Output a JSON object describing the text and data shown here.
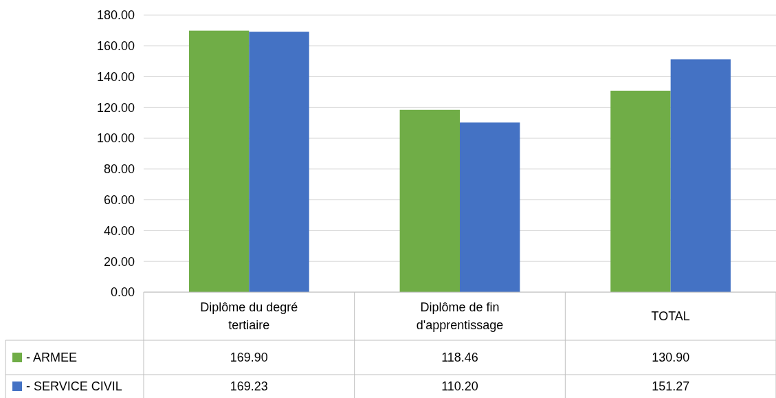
{
  "chart_data": {
    "type": "bar",
    "categories": [
      "Diplôme du degré tertiaire",
      "Diplôme de fin d'apprentissage",
      "TOTAL"
    ],
    "series": [
      {
        "name": "- ARMEE",
        "color": "#70ad47",
        "values": [
          169.9,
          118.46,
          130.9
        ],
        "value_labels": [
          "169.90",
          "118.46",
          "130.90"
        ]
      },
      {
        "name": "- SERVICE CIVIL",
        "color": "#4472c4",
        "values": [
          169.23,
          110.2,
          151.27
        ],
        "value_labels": [
          "169.23",
          "110.20",
          "151.27"
        ]
      }
    ],
    "ylim": [
      0,
      180
    ],
    "yticks": [
      {
        "value": 0,
        "label": "0.00"
      },
      {
        "value": 20,
        "label": "20.00"
      },
      {
        "value": 40,
        "label": "40.00"
      },
      {
        "value": 60,
        "label": "60.00"
      },
      {
        "value": 80,
        "label": "80.00"
      },
      {
        "value": 100,
        "label": "100.00"
      },
      {
        "value": 120,
        "label": "120.00"
      },
      {
        "value": 140,
        "label": "140.00"
      },
      {
        "value": 160,
        "label": "160.00"
      },
      {
        "value": 180,
        "label": "180.00"
      }
    ],
    "grid": "y",
    "legend": "bottom left"
  }
}
